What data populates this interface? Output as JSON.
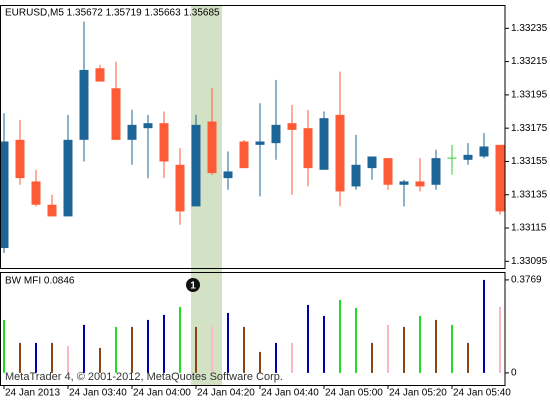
{
  "chart_data": [
    {
      "type": "candlestick",
      "title": "EURUSD,M5  1.35672 1.35719 1.35663 1.35685",
      "categories": [
        "24 Jan 2013",
        null,
        null,
        null,
        "24 Jan 03:40",
        null,
        null,
        null,
        "24 Jan 04:00",
        null,
        null,
        null,
        "24 Jan 04:20",
        null,
        null,
        null,
        "24 Jan 04:40",
        null,
        null,
        null,
        "24 Jan 05:00",
        null,
        null,
        null,
        "24 Jan 05:20",
        null,
        null,
        null,
        "24 Jan 05:40",
        null,
        null,
        null
      ],
      "open": [
        1.33103,
        1.33168,
        1.33143,
        1.33129,
        1.33122,
        1.33168,
        1.33211,
        1.33199,
        1.33168,
        1.33175,
        1.33178,
        1.33153,
        1.33128,
        1.33179,
        1.33145,
        1.33167,
        1.33165,
        1.33166,
        1.33178,
        1.33175,
        1.3315,
        1.33183,
        1.3314,
        1.33151,
        1.33157,
        1.33141,
        1.33143,
        1.33141,
        1.33157,
        1.33156,
        1.33158,
        1.33165
      ],
      "high": [
        1.33184,
        1.3318,
        1.3315,
        1.33135,
        1.33183,
        1.33239,
        1.33213,
        1.33215,
        1.33186,
        1.33183,
        1.33185,
        1.33163,
        1.33183,
        1.33199,
        1.33161,
        1.33168,
        1.3319,
        1.33204,
        1.33189,
        1.33186,
        1.33185,
        1.33209,
        1.33171,
        1.33158,
        1.33157,
        1.33144,
        1.33157,
        1.33162,
        1.33165,
        1.33166,
        1.33172,
        1.33165
      ],
      "low": [
        1.331,
        1.33141,
        1.33128,
        1.33122,
        1.33122,
        1.33155,
        1.33203,
        1.33168,
        1.33153,
        1.33145,
        1.33145,
        1.33117,
        1.33128,
        1.33147,
        1.33138,
        1.33151,
        1.33134,
        1.33156,
        1.33135,
        1.3314,
        1.3315,
        1.33128,
        1.33138,
        1.33144,
        1.33138,
        1.33128,
        1.33137,
        1.33138,
        1.33147,
        1.33153,
        1.33157,
        1.33123
      ],
      "close": [
        1.33167,
        1.33145,
        1.33129,
        1.33122,
        1.33168,
        1.3321,
        1.33203,
        1.33168,
        1.33177,
        1.33178,
        1.33155,
        1.33125,
        1.33177,
        1.33148,
        1.33149,
        1.33151,
        1.33167,
        1.33177,
        1.33174,
        1.33151,
        1.33181,
        1.33137,
        1.33153,
        1.33158,
        1.33141,
        1.33143,
        1.3314,
        1.33157,
        1.33157,
        1.33159,
        1.33164,
        1.33125
      ],
      "up_color": "#1c6596",
      "down_color": "#ff5a36",
      "doji_color": "#33cc33",
      "ylim": [
        1.33091,
        1.33249
      ],
      "yticks": [
        1.33235,
        1.33215,
        1.33195,
        1.33175,
        1.33155,
        1.33135,
        1.33115,
        1.33095
      ],
      "highlight": {
        "categories": [
          12,
          13
        ],
        "color": "#d3e2c4"
      },
      "annotation": {
        "text": "1",
        "category": 12
      }
    },
    {
      "type": "bar",
      "title": "BW MFI 0.0846",
      "values": [
        0.2148,
        0.1216,
        0.1216,
        0.1216,
        0.1094,
        0.1945,
        0.1013,
        0.1864,
        0.1864,
        0.2148,
        0.2351,
        0.2675,
        0.1864,
        0.1864,
        0.2432,
        0.1864,
        0.0851,
        0.1216,
        0.1216,
        0.2756,
        0.231,
        0.2959,
        0.2634,
        0.1216,
        0.1945,
        0.1864,
        0.231,
        0.2148,
        0.1945,
        0.1216,
        0.3769,
        0.2675
      ],
      "colors": [
        "#22dd22",
        "#8b4513",
        "#0000aa",
        "#8b4513",
        "#ffb6c1",
        "#0000aa",
        "#8b4513",
        "#22dd22",
        "#8b4513",
        "#0000aa",
        "#0000aa",
        "#22dd22",
        "#8b4513",
        "#ffb6c1",
        "#0000aa",
        "#8b4513",
        "#8b4513",
        "#0000aa",
        "#ffb6c1",
        "#0000aa",
        "#0000aa",
        "#22dd22",
        "#22dd22",
        "#8b4513",
        "#ffb6c1",
        "#8b4513",
        "#22dd22",
        "#8b4513",
        "#22dd22",
        "#8b4513",
        "#0000aa",
        "#ffb6c1"
      ],
      "ylim": [
        -0.049,
        0.409
      ],
      "yticks": [
        0.3769,
        0
      ],
      "watermark": "MetaTrader 4, © 2001-2012, MetaQuotes Software Corp."
    }
  ]
}
